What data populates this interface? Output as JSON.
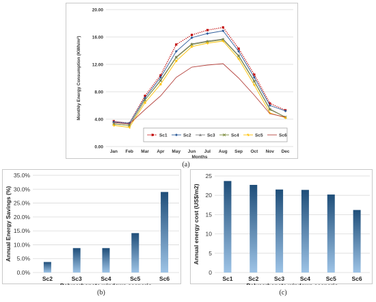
{
  "captions": {
    "a": "(a)",
    "b": "(b)",
    "c": "(c)"
  },
  "chart_data": [
    {
      "id": "a",
      "type": "line",
      "title": "",
      "xlabel": "Months",
      "ylabel": "Monthly Energy Consumption (KWh/m²)",
      "categories": [
        "Jan",
        "Feb",
        "Mar",
        "Apr",
        "May",
        "Jun",
        "Jul",
        "Aug",
        "Sep",
        "Oct",
        "Nov",
        "Dec"
      ],
      "ylim": [
        0,
        20
      ],
      "yticks": [
        "0.00",
        "4.00",
        "8.00",
        "12.00",
        "16.00",
        "20.00"
      ],
      "grid": true,
      "legend": "bottom-right",
      "series": [
        {
          "name": "Sc1",
          "color": "#c00000",
          "style": "dotted",
          "marker": "square",
          "values": [
            3.7,
            3.4,
            7.4,
            10.4,
            14.9,
            16.3,
            17.0,
            17.4,
            14.3,
            10.5,
            6.3,
            5.3
          ]
        },
        {
          "name": "Sc2",
          "color": "#2e5c9a",
          "style": "solid",
          "marker": "diamond",
          "values": [
            3.6,
            3.4,
            7.1,
            10.1,
            13.9,
            15.9,
            16.5,
            16.9,
            13.9,
            10.1,
            6.0,
            5.2
          ]
        },
        {
          "name": "Sc3",
          "color": "#7f7f7f",
          "style": "solid",
          "marker": "triangle",
          "values": [
            3.3,
            3.1,
            6.8,
            9.7,
            13.1,
            15.0,
            15.4,
            15.7,
            13.3,
            9.6,
            5.5,
            4.3
          ]
        },
        {
          "name": "Sc4",
          "color": "#7a8a3a",
          "style": "solid",
          "marker": "cross",
          "values": [
            3.3,
            3.1,
            6.8,
            9.6,
            13.0,
            14.9,
            15.3,
            15.6,
            13.2,
            9.5,
            5.4,
            4.3
          ]
        },
        {
          "name": "Sc5",
          "color": "#ffc000",
          "style": "solid",
          "marker": "star",
          "values": [
            3.1,
            2.8,
            6.4,
            9.1,
            12.5,
            14.6,
            15.1,
            15.4,
            12.8,
            9.0,
            4.9,
            4.2
          ]
        },
        {
          "name": "Sc6",
          "color": "#b5443f",
          "style": "solid",
          "marker": "none",
          "values": [
            3.5,
            3.3,
            5.4,
            7.4,
            10.1,
            11.6,
            11.9,
            12.1,
            10.0,
            7.5,
            4.8,
            4.3
          ]
        }
      ]
    },
    {
      "id": "b",
      "type": "bar",
      "title": "",
      "xlabel": "Polycarbonate windows scenario",
      "ylabel": "Annual Energy Savings (%)",
      "categories": [
        "Sc2",
        "Sc3",
        "Sc4",
        "Sc5",
        "Sc6"
      ],
      "values": [
        3.8,
        8.8,
        8.8,
        14.2,
        29.0
      ],
      "ylim": [
        0,
        35
      ],
      "yticks": [
        "0.0%",
        "5.0%",
        "10.0%",
        "15.0%",
        "20.0%",
        "25.0%",
        "30.0%",
        "35.0%"
      ],
      "grid": true
    },
    {
      "id": "c",
      "type": "bar",
      "title": "",
      "xlabel": "Polycarbonate windows scenario",
      "ylabel": "Annual energy cost (US$/m2)",
      "categories": [
        "Sc1",
        "Sc2",
        "Sc3",
        "Sc4",
        "Sc5",
        "Sc6"
      ],
      "values": [
        23.7,
        22.7,
        21.5,
        21.4,
        20.2,
        16.2
      ],
      "ylim": [
        0,
        25
      ],
      "yticks": [
        "0",
        "5",
        "10",
        "15",
        "20",
        "25"
      ],
      "grid": true
    }
  ]
}
